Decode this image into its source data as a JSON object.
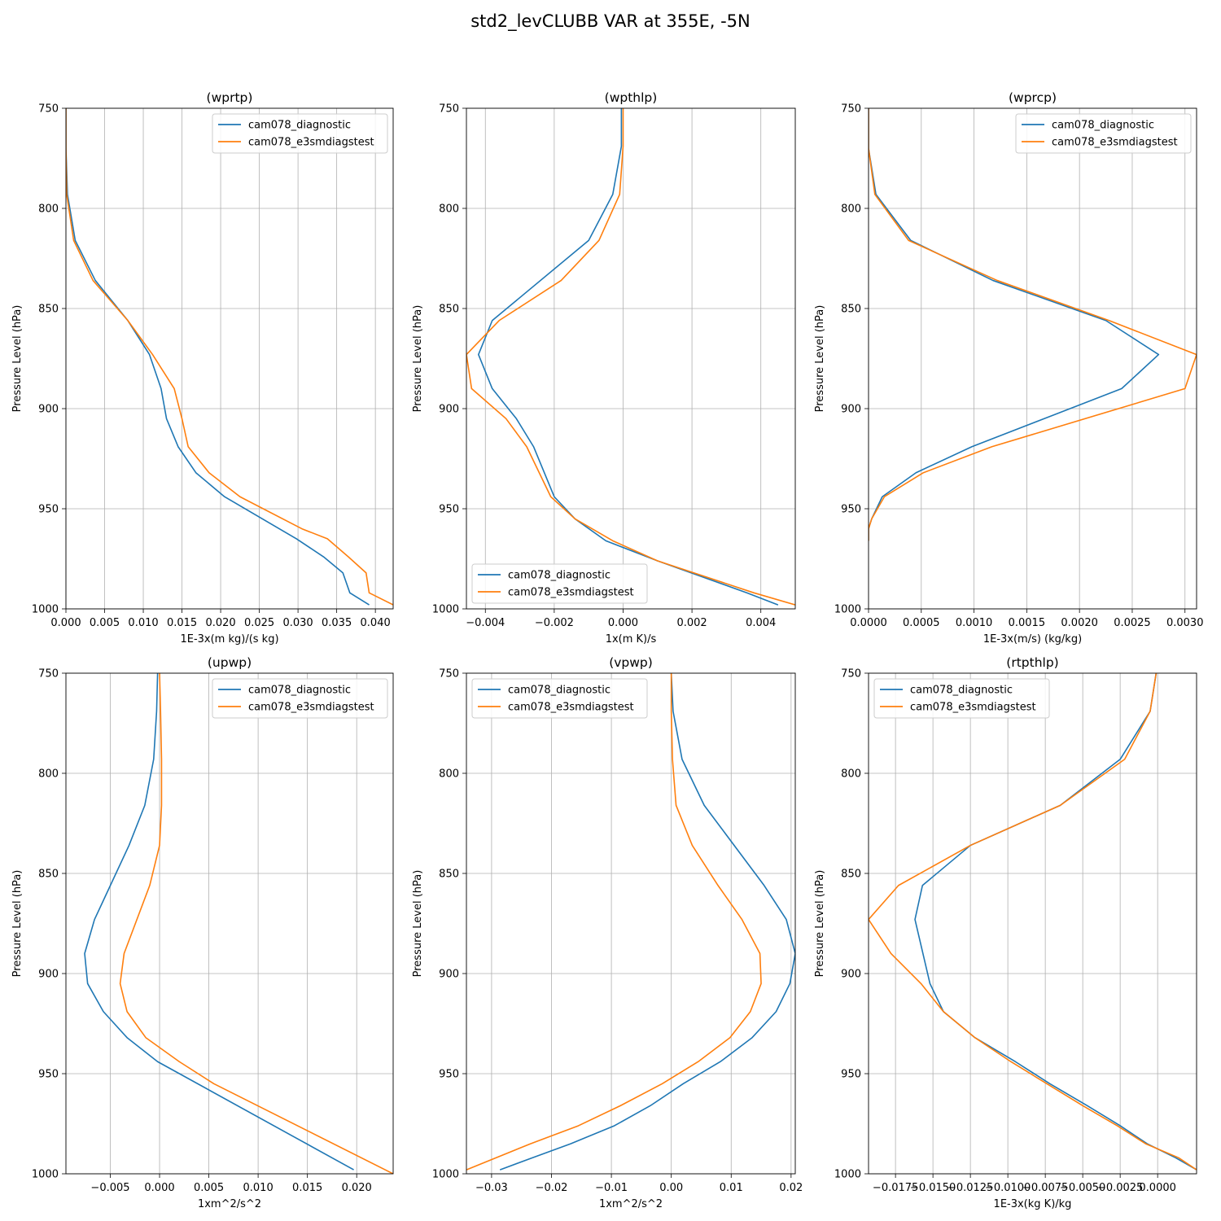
{
  "figure": {
    "title": "std2_levCLUBB VAR at 355E, -5N",
    "colors": {
      "series_0": "#1f77b4",
      "series_1": "#ff7f0e",
      "grid": "#b0b0b0"
    }
  },
  "chart_data": [
    {
      "type": "line",
      "title": "(wprtp)",
      "xlabel": "1E-3x(m kg)/(s kg)",
      "ylabel": "Pressure Level (hPa)",
      "xlim": [
        0,
        0.0423
      ],
      "ylim": [
        1000,
        750
      ],
      "xticks": [
        0,
        0.005,
        0.01,
        0.015,
        0.02,
        0.025,
        0.03,
        0.035,
        0.04
      ],
      "xtick_labels": [
        "0.000",
        "0.005",
        "0.010",
        "0.015",
        "0.020",
        "0.025",
        "0.030",
        "0.035",
        "0.040"
      ],
      "yticks": [
        750,
        800,
        850,
        900,
        950,
        1000
      ],
      "grid": true,
      "legend": "upper right",
      "series": [
        {
          "name": "cam078_diagnostic",
          "x": [
            0,
            0,
            0.0002,
            0.0012,
            0.0038,
            0.008,
            0.0108,
            0.0123,
            0.013,
            0.0145,
            0.0168,
            0.0205,
            0.0298,
            0.0333,
            0.0358,
            0.0367,
            0.0392
          ],
          "y": [
            750,
            770,
            793,
            816,
            836,
            856,
            873,
            890,
            905,
            919,
            932,
            944,
            965,
            974,
            982,
            992,
            998
          ]
        },
        {
          "name": "cam078_e3smdiagstest",
          "x": [
            0,
            0,
            0.0001,
            0.001,
            0.0035,
            0.008,
            0.0112,
            0.014,
            0.015,
            0.0158,
            0.0185,
            0.0225,
            0.0305,
            0.0338,
            0.0365,
            0.0388,
            0.0392,
            0.0423
          ],
          "y": [
            750,
            770,
            793,
            816,
            836,
            856,
            873,
            890,
            905,
            919,
            932,
            944,
            960,
            965,
            974,
            982,
            992,
            998
          ]
        }
      ]
    },
    {
      "type": "line",
      "title": "(wpthlp)",
      "xlabel": "1x(m K)/s",
      "ylabel": "Pressure Level (hPa)",
      "xlim": [
        -0.00455,
        0.005
      ],
      "ylim": [
        1000,
        750
      ],
      "xticks": [
        -0.004,
        -0.002,
        0,
        0.002,
        0.004
      ],
      "xtick_labels": [
        "−0.004",
        "−0.002",
        "0.000",
        "0.002",
        "0.004"
      ],
      "yticks": [
        750,
        800,
        850,
        900,
        950,
        1000
      ],
      "grid": true,
      "legend": "lower left",
      "series": [
        {
          "name": "cam078_diagnostic",
          "x": [
            -5e-05,
            -5e-05,
            -0.0003,
            -0.001,
            -0.0038,
            -0.0042,
            -0.0038,
            -0.0031,
            -0.0026,
            -0.002,
            -0.0014,
            -0.0005,
            0.001,
            0.0036,
            0.0045
          ],
          "y": [
            750,
            769,
            793,
            816,
            856,
            873,
            890,
            905,
            919,
            944,
            955,
            966,
            976,
            992,
            998
          ]
        },
        {
          "name": "cam078_e3smdiagstest",
          "x": [
            0.0,
            0.0,
            -0.0001,
            -0.0007,
            -0.0018,
            -0.0036,
            -0.00455,
            -0.0044,
            -0.0034,
            -0.0028,
            -0.0021,
            -0.0014,
            -0.0003,
            0.001,
            0.0038,
            0.005
          ],
          "y": [
            750,
            769,
            793,
            816,
            836,
            856,
            873,
            890,
            905,
            919,
            944,
            955,
            966,
            976,
            992,
            998
          ]
        }
      ]
    },
    {
      "type": "line",
      "title": "(wprcp)",
      "xlabel": "1E-3x(m/s) (kg/kg)",
      "ylabel": "Pressure Level (hPa)",
      "xlim": [
        0,
        0.00311
      ],
      "ylim": [
        1000,
        750
      ],
      "xticks": [
        0,
        0.0005,
        0.001,
        0.0015,
        0.002,
        0.0025,
        0.003
      ],
      "xtick_labels": [
        "0.0000",
        "0.0005",
        "0.0010",
        "0.0015",
        "0.0020",
        "0.0025",
        "0.0030"
      ],
      "yticks": [
        750,
        800,
        850,
        900,
        950,
        1000
      ],
      "grid": true,
      "legend": "upper right",
      "series": [
        {
          "name": "cam078_diagnostic",
          "x": [
            0,
            0,
            7e-05,
            0.0004,
            0.00118,
            0.00225,
            0.00275,
            0.0024,
            0.00098,
            0.00045,
            0.00013,
            3e-05,
            0,
            0
          ],
          "y": [
            750,
            770,
            793,
            816,
            836,
            856,
            873,
            890,
            919,
            932,
            944,
            955,
            960,
            966
          ]
        },
        {
          "name": "cam078_e3smdiagstest",
          "x": [
            0,
            0,
            6e-05,
            0.00038,
            0.00122,
            0.00228,
            0.00311,
            0.003,
            0.00117,
            0.00052,
            0.00015,
            3e-05,
            0,
            0
          ],
          "y": [
            750,
            770,
            793,
            816,
            836,
            856,
            873,
            890,
            919,
            932,
            944,
            955,
            960,
            966
          ]
        }
      ]
    },
    {
      "type": "line",
      "title": "(upwp)",
      "xlabel": "1xm^2/s^2",
      "ylabel": "Pressure Level (hPa)",
      "xlim": [
        -0.0095,
        0.0237
      ],
      "ylim": [
        1000,
        750
      ],
      "xticks": [
        -0.005,
        0,
        0.005,
        0.01,
        0.015,
        0.02
      ],
      "xtick_labels": [
        "−0.005",
        "0.000",
        "0.005",
        "0.010",
        "0.015",
        "0.020"
      ],
      "yticks": [
        750,
        800,
        850,
        900,
        950,
        1000
      ],
      "grid": true,
      "legend": "upper right",
      "series": [
        {
          "name": "cam078_diagnostic",
          "x": [
            -0.0002,
            -0.0003,
            -0.0006,
            -0.0015,
            -0.0031,
            -0.0066,
            -0.0076,
            -0.0073,
            -0.0057,
            -0.0033,
            -0.0002,
            0.0197
          ],
          "y": [
            750,
            769,
            793,
            816,
            836,
            873,
            890,
            905,
            919,
            932,
            944,
            998
          ]
        },
        {
          "name": "cam078_e3smdiagstest",
          "x": [
            0,
            0.0001,
            0.0002,
            0.0002,
            0,
            -0.001,
            -0.0036,
            -0.004,
            -0.0033,
            -0.0014,
            0.002,
            0.0055,
            0.0237
          ],
          "y": [
            750,
            769,
            793,
            816,
            836,
            856,
            890,
            905,
            919,
            932,
            944,
            955,
            1000
          ]
        }
      ]
    },
    {
      "type": "line",
      "title": "(vpwp)",
      "xlabel": "1xm^2/s^2",
      "ylabel": "Pressure Level (hPa)",
      "xlim": [
        -0.0342,
        0.0207
      ],
      "ylim": [
        1000,
        750
      ],
      "xticks": [
        -0.03,
        -0.02,
        -0.01,
        0,
        0.01,
        0.02
      ],
      "xtick_labels": [
        "−0.03",
        "−0.02",
        "−0.01",
        "0.00",
        "0.01",
        "0.02"
      ],
      "yticks": [
        750,
        800,
        850,
        900,
        950,
        1000
      ],
      "grid": true,
      "legend": "upper left",
      "series": [
        {
          "name": "cam078_diagnostic",
          "x": [
            0,
            0.0003,
            0.0018,
            0.0055,
            0.0155,
            0.0192,
            0.0207,
            0.0198,
            0.0175,
            0.0135,
            0.0082,
            0.002,
            -0.0035,
            -0.0095,
            -0.0168,
            -0.0232,
            -0.0286
          ],
          "y": [
            750,
            769,
            793,
            816,
            856,
            873,
            890,
            905,
            919,
            932,
            944,
            955,
            966,
            976,
            985,
            992,
            998
          ]
        },
        {
          "name": "cam078_e3smdiagstest",
          "x": [
            0,
            0,
            0.0002,
            0.0008,
            0.0035,
            0.0078,
            0.0118,
            0.0148,
            0.015,
            0.0132,
            0.0098,
            0.0045,
            -0.0015,
            -0.0085,
            -0.0155,
            -0.0235,
            -0.0342
          ],
          "y": [
            750,
            769,
            793,
            816,
            836,
            856,
            873,
            890,
            905,
            919,
            932,
            944,
            955,
            966,
            976,
            985,
            998
          ]
        }
      ]
    },
    {
      "type": "line",
      "title": "(rtpthlp)",
      "xlabel": "1E-3x(kg K)/kg",
      "ylabel": "Pressure Level (hPa)",
      "xlim": [
        -0.0193,
        0.0026
      ],
      "ylim": [
        1000,
        750
      ],
      "xticks": [
        -0.0175,
        -0.015,
        -0.0125,
        -0.01,
        -0.0075,
        -0.005,
        -0.0025,
        0
      ],
      "xtick_labels": [
        "−0.0175",
        "−0.0150",
        "−0.0125",
        "−0.0100",
        "−0.0075",
        "−0.0050",
        "−0.0025",
        "0.0000"
      ],
      "yticks": [
        750,
        800,
        850,
        900,
        950,
        1000
      ],
      "grid": true,
      "legend": "upper left",
      "series": [
        {
          "name": "cam078_diagnostic",
          "x": [
            -0.0001,
            -0.0005,
            -0.0025,
            -0.0065,
            -0.0125,
            -0.0157,
            -0.0162,
            -0.0152,
            -0.0143,
            -0.0122,
            -0.0095,
            -0.0072,
            -0.0047,
            -0.0025,
            -0.0007,
            0.0012,
            0.0026
          ],
          "y": [
            750,
            769,
            793,
            816,
            836,
            856,
            873,
            905,
            919,
            932,
            944,
            955,
            966,
            976,
            985,
            992,
            998
          ]
        },
        {
          "name": "cam078_e3smdiagstest",
          "x": [
            -0.0001,
            -0.0005,
            -0.0022,
            -0.0065,
            -0.0125,
            -0.0173,
            -0.0193,
            -0.0178,
            -0.0158,
            -0.0143,
            -0.0122,
            -0.0098,
            -0.0074,
            -0.005,
            -0.0027,
            -0.0008,
            0.0014,
            0.0026
          ],
          "y": [
            750,
            769,
            793,
            816,
            836,
            856,
            873,
            890,
            905,
            919,
            932,
            944,
            955,
            966,
            976,
            985,
            992,
            998
          ]
        }
      ]
    }
  ]
}
